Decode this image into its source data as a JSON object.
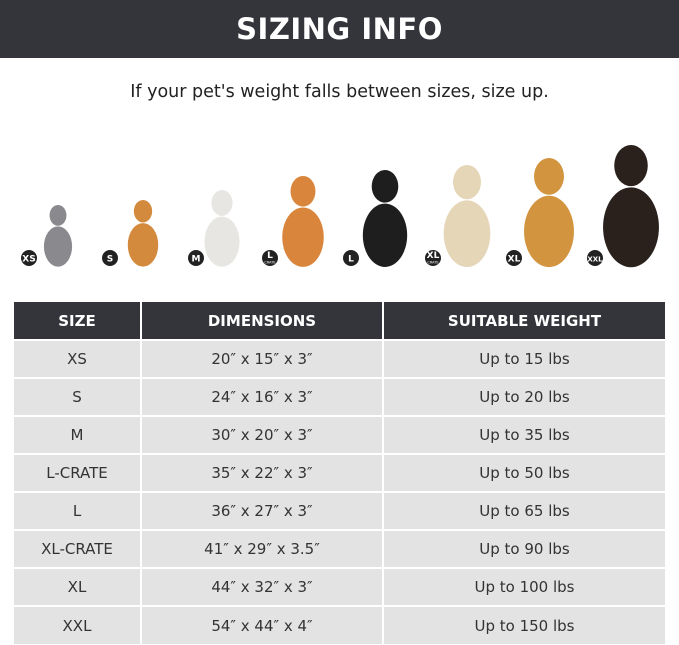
{
  "header": {
    "title": "SIZING INFO"
  },
  "subtitle": "If your pet's weight falls between sizes, size up.",
  "pets": [
    {
      "badge": "XS",
      "badge_sub": "",
      "animal": "cat",
      "color": "#8a8a8e"
    },
    {
      "badge": "S",
      "badge_sub": "",
      "animal": "pomeranian",
      "color": "#d48a3c"
    },
    {
      "badge": "M",
      "badge_sub": "",
      "animal": "french-bulldog",
      "color": "#e8e6e3"
    },
    {
      "badge": "L",
      "badge_sub": "CRATE",
      "animal": "shiba-inu",
      "color": "#d9853b"
    },
    {
      "badge": "L",
      "badge_sub": "",
      "animal": "border-collie",
      "color": "#1e1e1e"
    },
    {
      "badge": "XL",
      "badge_sub": "CRATE",
      "animal": "labrador",
      "color": "#e6d6b8"
    },
    {
      "badge": "XL",
      "badge_sub": "",
      "animal": "golden-retriever",
      "color": "#d2943e"
    },
    {
      "badge": "XXL",
      "badge_sub": "",
      "animal": "doberman",
      "color": "#2a211d"
    }
  ],
  "table": {
    "headers": [
      "SIZE",
      "DIMENSIONS",
      "SUITABLE WEIGHT"
    ],
    "rows": [
      [
        "XS",
        "20″ x 15″ x 3″",
        "Up to 15 lbs"
      ],
      [
        "S",
        "24″ x 16″ x 3″",
        "Up to 20 lbs"
      ],
      [
        "M",
        "30″ x 20″ x 3″",
        "Up to 35 lbs"
      ],
      [
        "L-CRATE",
        "35″ x 22″ x 3″",
        "Up to 50 lbs"
      ],
      [
        "L",
        "36″ x 27″ x 3″",
        "Up to 65 lbs"
      ],
      [
        "XL-CRATE",
        "41″ x 29″ x 3.5″",
        "Up to 90 lbs"
      ],
      [
        "XL",
        "44″ x 32″ x 3″",
        "Up to 100 lbs"
      ],
      [
        "XXL",
        "54″ x 44″ x 4″",
        "Up to 150 lbs"
      ]
    ]
  }
}
